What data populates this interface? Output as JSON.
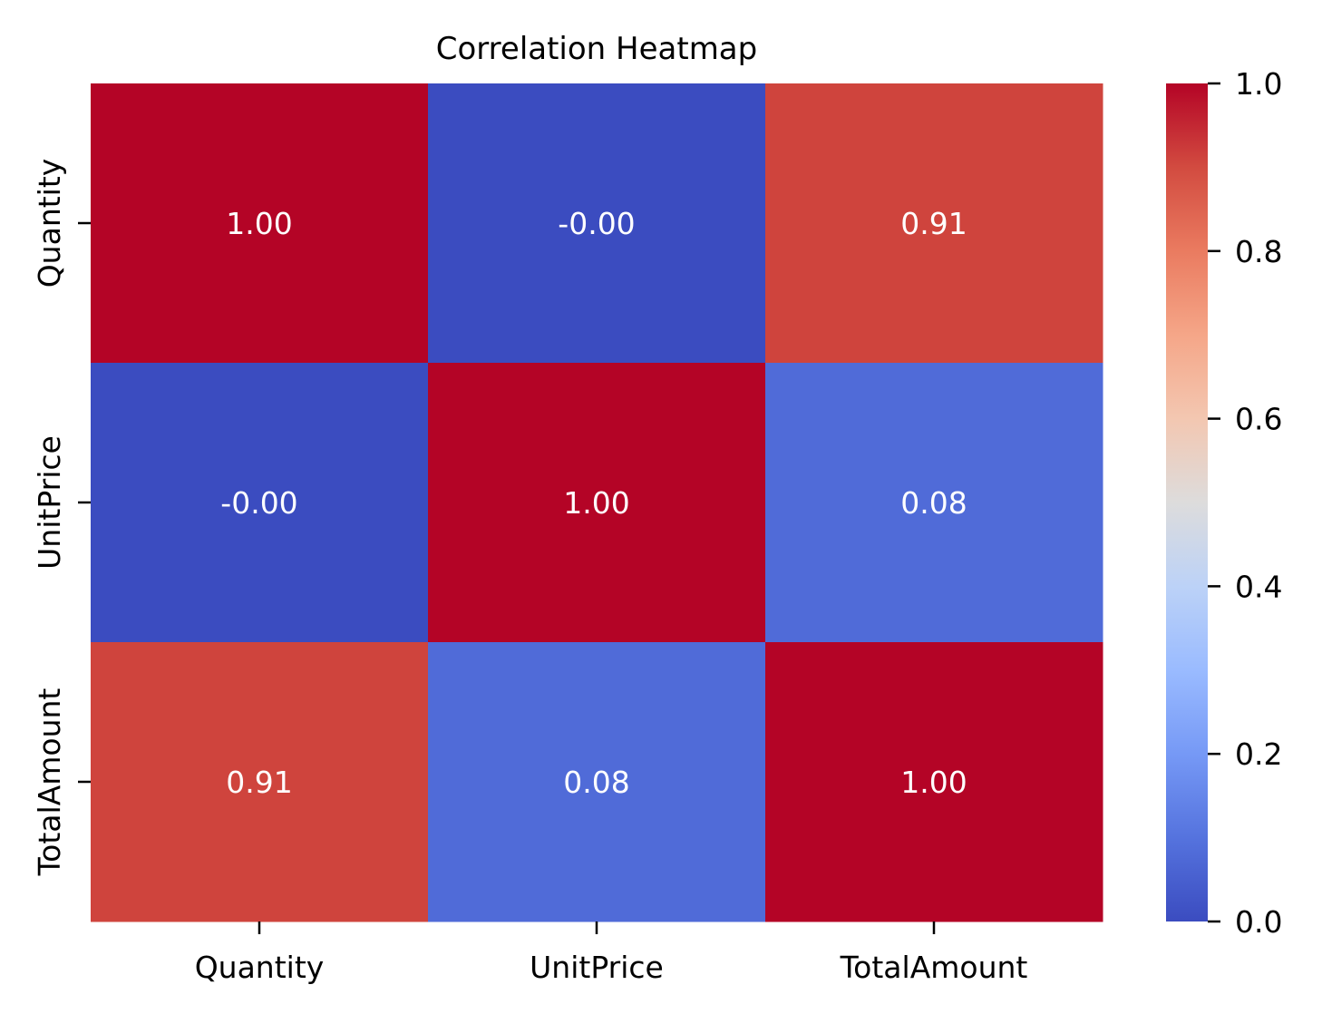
{
  "chart_data": {
    "type": "heatmap",
    "title": "Correlation Heatmap",
    "xlabel": "",
    "ylabel": "",
    "x_categories": [
      "Quantity",
      "UnitPrice",
      "TotalAmount"
    ],
    "y_categories": [
      "Quantity",
      "UnitPrice",
      "TotalAmount"
    ],
    "values": [
      [
        1.0,
        -0.0,
        0.91
      ],
      [
        -0.0,
        1.0,
        0.08
      ],
      [
        0.91,
        0.08,
        1.0
      ]
    ],
    "value_labels": [
      [
        "1.00",
        "-0.00",
        "0.91"
      ],
      [
        "-0.00",
        "1.00",
        "0.08"
      ],
      [
        "0.91",
        "0.08",
        "1.00"
      ]
    ],
    "colormap": "coolwarm",
    "vmin": 0.0,
    "vmax": 1.0,
    "colorbar_ticks": [
      "0.0",
      "0.2",
      "0.4",
      "0.6",
      "0.8",
      "1.0"
    ],
    "colorbar_tick_values": [
      0.0,
      0.2,
      0.4,
      0.6,
      0.8,
      1.0
    ],
    "colormap_stops": [
      {
        "v": 0.0,
        "color": "#3b4cc0"
      },
      {
        "v": 0.1,
        "color": "#5573de"
      },
      {
        "v": 0.2,
        "color": "#7699f6"
      },
      {
        "v": 0.3,
        "color": "#9abbff"
      },
      {
        "v": 0.4,
        "color": "#bcd2f7"
      },
      {
        "v": 0.5,
        "color": "#dddcdc"
      },
      {
        "v": 0.6,
        "color": "#f3c7b1"
      },
      {
        "v": 0.7,
        "color": "#f5a688"
      },
      {
        "v": 0.8,
        "color": "#ea7b60"
      },
      {
        "v": 0.9,
        "color": "#d24b40"
      },
      {
        "v": 1.0,
        "color": "#b40426"
      }
    ],
    "annotation_color": "#ffffff"
  }
}
